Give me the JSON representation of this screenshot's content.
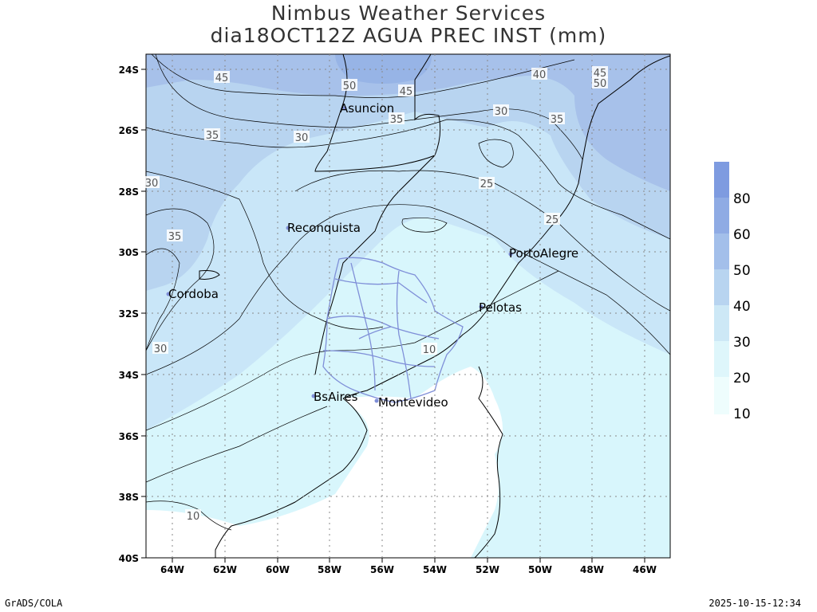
{
  "title": {
    "line1": "Nimbus Weather Services",
    "line2": "dia18OCT12Z AGUA PREC INST (mm)"
  },
  "footer": {
    "left": "GrADS/COLA",
    "right": "2025-10-15-12:34"
  },
  "axes": {
    "lat_labels": [
      "24S",
      "26S",
      "28S",
      "30S",
      "32S",
      "34S",
      "36S",
      "38S",
      "40S"
    ],
    "lon_labels": [
      "64W",
      "62W",
      "60W",
      "58W",
      "56W",
      "54W",
      "52W",
      "50W",
      "48W",
      "46W"
    ]
  },
  "cities": [
    {
      "name": "Asuncion"
    },
    {
      "name": "Reconquista"
    },
    {
      "name": "PortoAlegre"
    },
    {
      "name": "Cordoba"
    },
    {
      "name": "Pelotas"
    },
    {
      "name": "BsAires"
    },
    {
      "name": "Montevideo"
    }
  ],
  "contour_labels": [
    "45",
    "50",
    "45",
    "40",
    "45",
    "50",
    "35",
    "30",
    "35",
    "35",
    "30",
    "30",
    "25",
    "25",
    "35",
    "30",
    "10",
    "10"
  ],
  "legend": {
    "labels": [
      "80",
      "60",
      "50",
      "40",
      "30",
      "20",
      "10"
    ],
    "colors": [
      "#7e9be0",
      "#8fabe4",
      "#a3bfea",
      "#b8d4f0",
      "#cde8f6",
      "#def6fb",
      "#eefdfd"
    ]
  },
  "colors": {
    "high": "#a7c1ea",
    "mid": "#c9e6f8",
    "low": "#d8f6fc",
    "land_white": "#ffffff",
    "coast": "#000000",
    "rivers": "#7f8fd8"
  }
}
